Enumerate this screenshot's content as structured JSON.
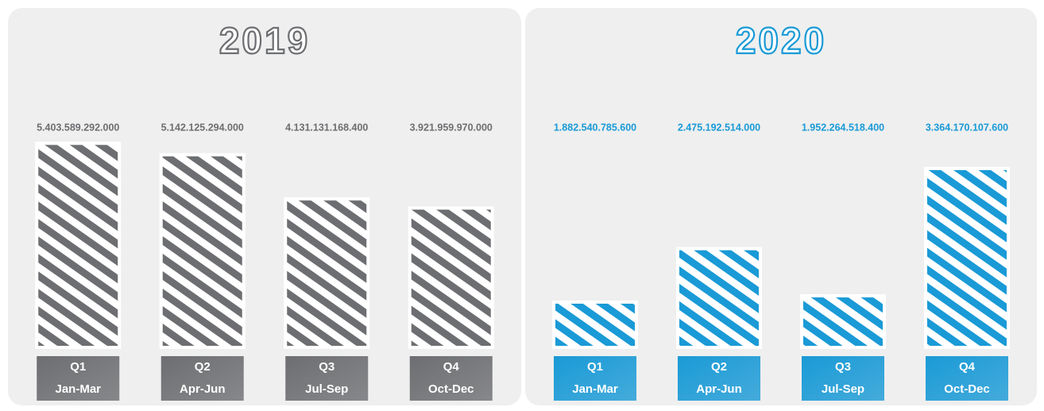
{
  "chart_data": [
    {
      "type": "bar",
      "title": "2019",
      "color": "#6d6e71",
      "categories": [
        "Q1",
        "Q2",
        "Q3",
        "Q4"
      ],
      "periods": [
        "Jan-Mar",
        "Apr-Jun",
        "Jul-Sep",
        "Oct-Dec"
      ],
      "values": [
        5403589292000,
        5142125294000,
        4131131168400,
        3921959970000
      ],
      "value_labels": [
        "5.403.589.292.000",
        "5.142.125.294.000",
        "4.131.131.168.400",
        "3.921.959.970.000"
      ],
      "ylim": [
        730000000000,
        5500000000000
      ]
    },
    {
      "type": "bar",
      "title": "2020",
      "color": "#1a9ad6",
      "categories": [
        "Q1",
        "Q2",
        "Q3",
        "Q4"
      ],
      "periods": [
        "Jan-Mar",
        "Apr-Jun",
        "Jul-Sep",
        "Oct-Dec"
      ],
      "values": [
        1882540785600,
        2475192514000,
        1952264518400,
        3364170107600
      ],
      "value_labels": [
        "1.882.540.785.600",
        "2.475.192.514.000",
        "1.952.264.518.400",
        "3.364.170.107.600"
      ],
      "ylim": [
        1380000000000,
        3690000000000
      ]
    }
  ]
}
